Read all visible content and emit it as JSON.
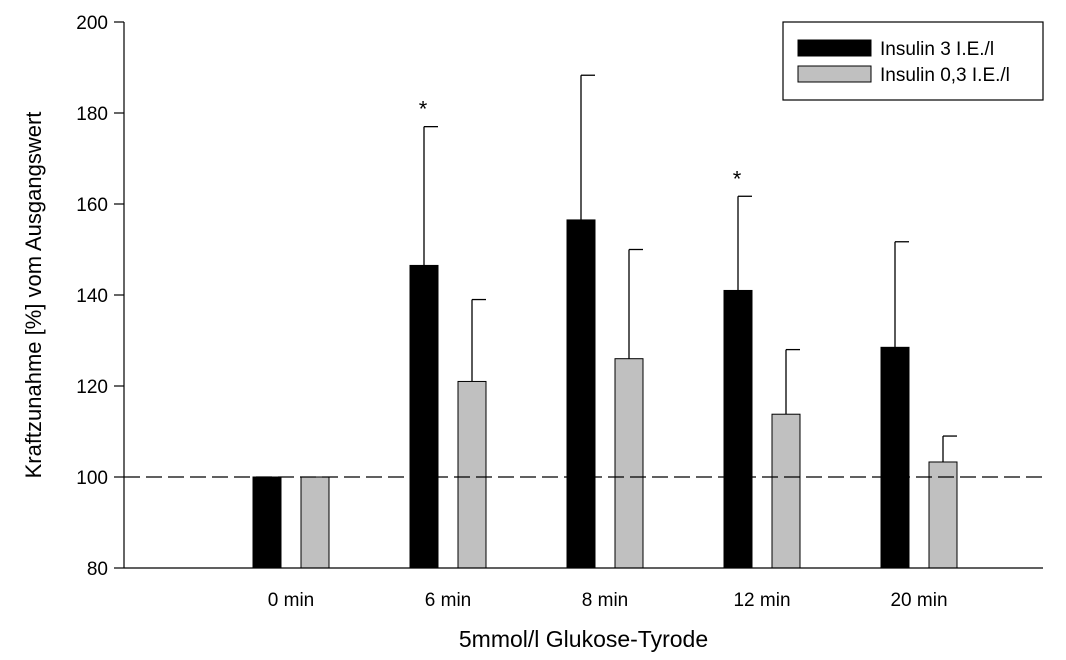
{
  "chart_data": {
    "type": "bar",
    "title": "",
    "xlabel": "5mmol/l Glukose-Tyrode",
    "ylabel": "Kraftzunahme [%] vom Ausgangswert",
    "categories": [
      "0 min",
      "6 min",
      "8 min",
      "12 min",
      "20 min"
    ],
    "ylim": [
      80,
      200
    ],
    "yticks": [
      80,
      100,
      120,
      140,
      160,
      180,
      200
    ],
    "reference_line": 100,
    "grid": false,
    "legend_position": "top-right",
    "series": [
      {
        "name": "Insulin 3 I.E./l",
        "color": "#000000",
        "values": [
          100,
          146.5,
          156.5,
          141,
          128.5
        ],
        "error_upper": [
          100,
          177,
          188.3,
          161.7,
          151.7
        ]
      },
      {
        "name": "Insulin 0,3 I.E./l",
        "color": "#c0c0c0",
        "values": [
          100,
          121,
          126,
          113.8,
          103.3
        ],
        "error_upper": [
          100,
          139,
          150,
          128,
          109
        ]
      }
    ],
    "annotations": [
      {
        "category": "6 min",
        "series": "Insulin 3 I.E./l",
        "text": "*"
      },
      {
        "category": "12 min",
        "series": "Insulin 3 I.E./l",
        "text": "*"
      }
    ]
  }
}
